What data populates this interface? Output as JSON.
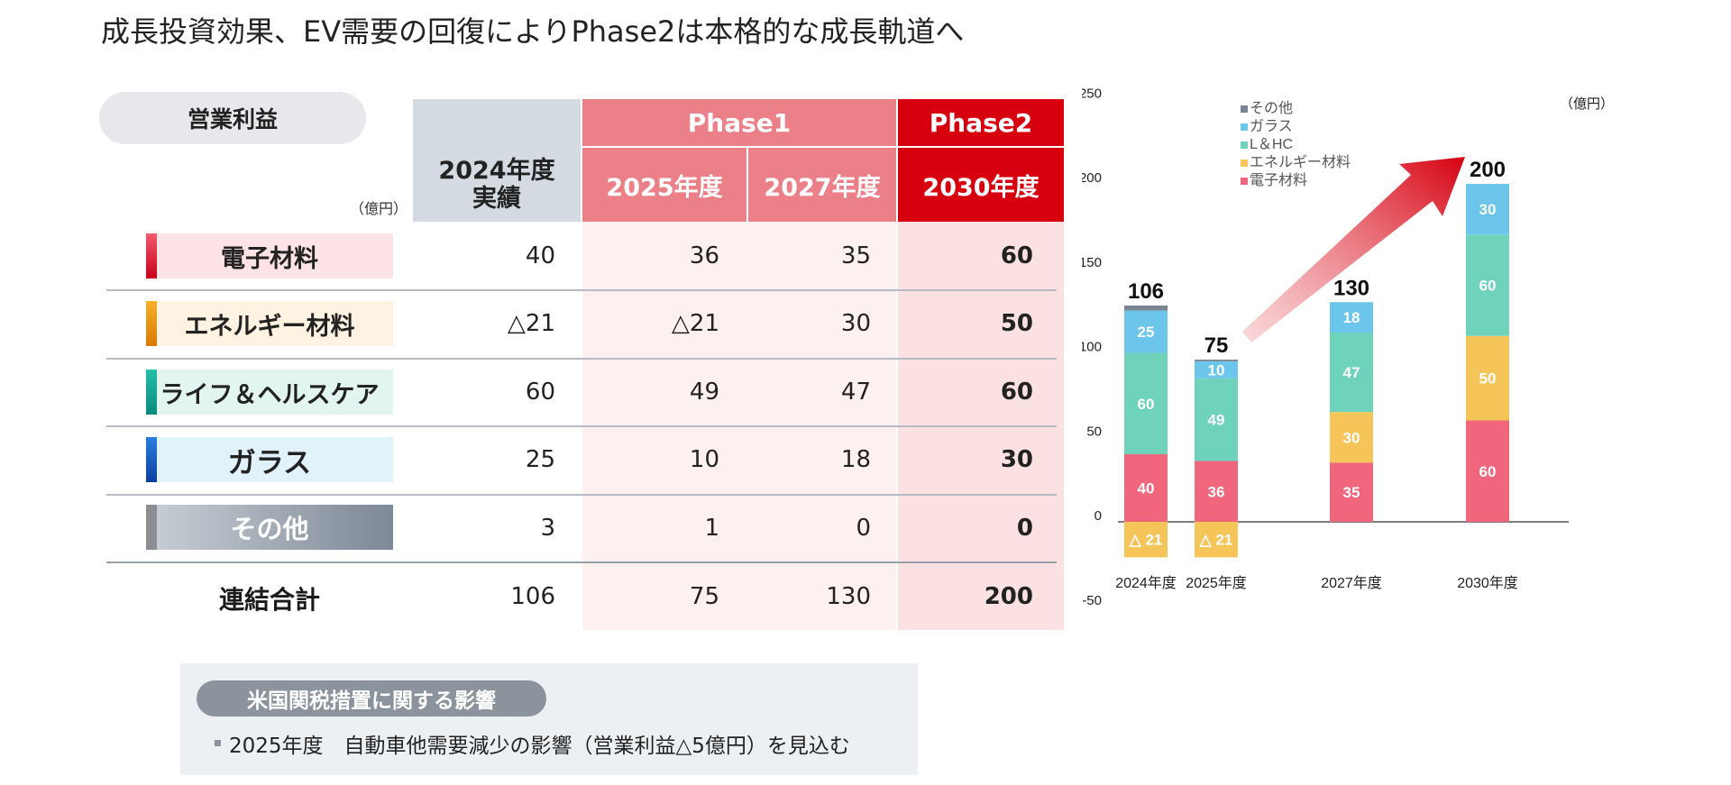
{
  "title": "成長投資効果、EV需要の回復によりPhase2は本格的な成長軌道へ",
  "table": {
    "pill_label": "営業利益",
    "unit": "（億円）",
    "col_2024": "2024年度\n実績",
    "phase1": "Phase1",
    "phase2": "Phase2",
    "col_2025": "2025年度",
    "col_2027": "2027年度",
    "col_2030": "2030年度",
    "rows": [
      {
        "label": "電子材料",
        "v2024": "40",
        "v2025": "36",
        "v2027": "35",
        "v2030": "60"
      },
      {
        "label": "エネルギー材料",
        "v2024": "△21",
        "v2025": "△21",
        "v2027": "30",
        "v2030": "50"
      },
      {
        "label": "ライフ＆ヘルスケア",
        "v2024": "60",
        "v2025": "49",
        "v2027": "47",
        "v2030": "60"
      },
      {
        "label": "ガラス",
        "v2024": "25",
        "v2025": "10",
        "v2027": "18",
        "v2030": "30"
      },
      {
        "label": "その他",
        "v2024": "3",
        "v2025": "1",
        "v2027": "0",
        "v2030": "0"
      }
    ],
    "total": {
      "label": "連結合計",
      "v2024": "106",
      "v2025": "75",
      "v2027": "130",
      "v2030": "200"
    }
  },
  "note": {
    "heading": "米国関税措置に関する影響",
    "text": "2025年度　自動車他需要減少の影響（営業利益△5億円）を見込む"
  },
  "colors": {
    "electronic": "#f0667c",
    "energy": "#f5c55a",
    "life": "#6fd3bc",
    "glass": "#6cc5ea",
    "other": "#7b8694",
    "phase1": "#ec8088",
    "phase2": "#d6000f",
    "actual_hdr": "#d4dae1"
  },
  "chart_data": {
    "type": "bar",
    "stacked": true,
    "categories": [
      "2024年度",
      "2025年度",
      "2027年度",
      "2030年度"
    ],
    "series": [
      {
        "name": "電子材料",
        "values": [
          40,
          36,
          35,
          60
        ]
      },
      {
        "name": "エネルギー材料",
        "values": [
          -21,
          -21,
          30,
          50
        ]
      },
      {
        "name": "L＆HC",
        "values": [
          60,
          49,
          47,
          60
        ]
      },
      {
        "name": "ガラス",
        "values": [
          25,
          10,
          18,
          30
        ]
      },
      {
        "name": "その他",
        "values": [
          3,
          1,
          0,
          0
        ]
      }
    ],
    "totals": [
      106,
      75,
      130,
      200
    ],
    "segment_labels": [
      [
        "40",
        "△ 21",
        "60",
        "25",
        ""
      ],
      [
        "36",
        "△ 21",
        "49",
        "10",
        ""
      ],
      [
        "35",
        "30",
        "47",
        "18",
        ""
      ],
      [
        "60",
        "50",
        "60",
        "30",
        ""
      ]
    ],
    "ylim": [
      -50,
      250
    ],
    "yticks": [
      -50,
      0,
      50,
      100,
      150,
      200,
      250
    ],
    "unit": "（億円）",
    "legend_order": [
      "その他",
      "ガラス",
      "L＆HC",
      "エネルギー材料",
      "電子材料"
    ],
    "legend_position": "top-left",
    "grid": false
  }
}
